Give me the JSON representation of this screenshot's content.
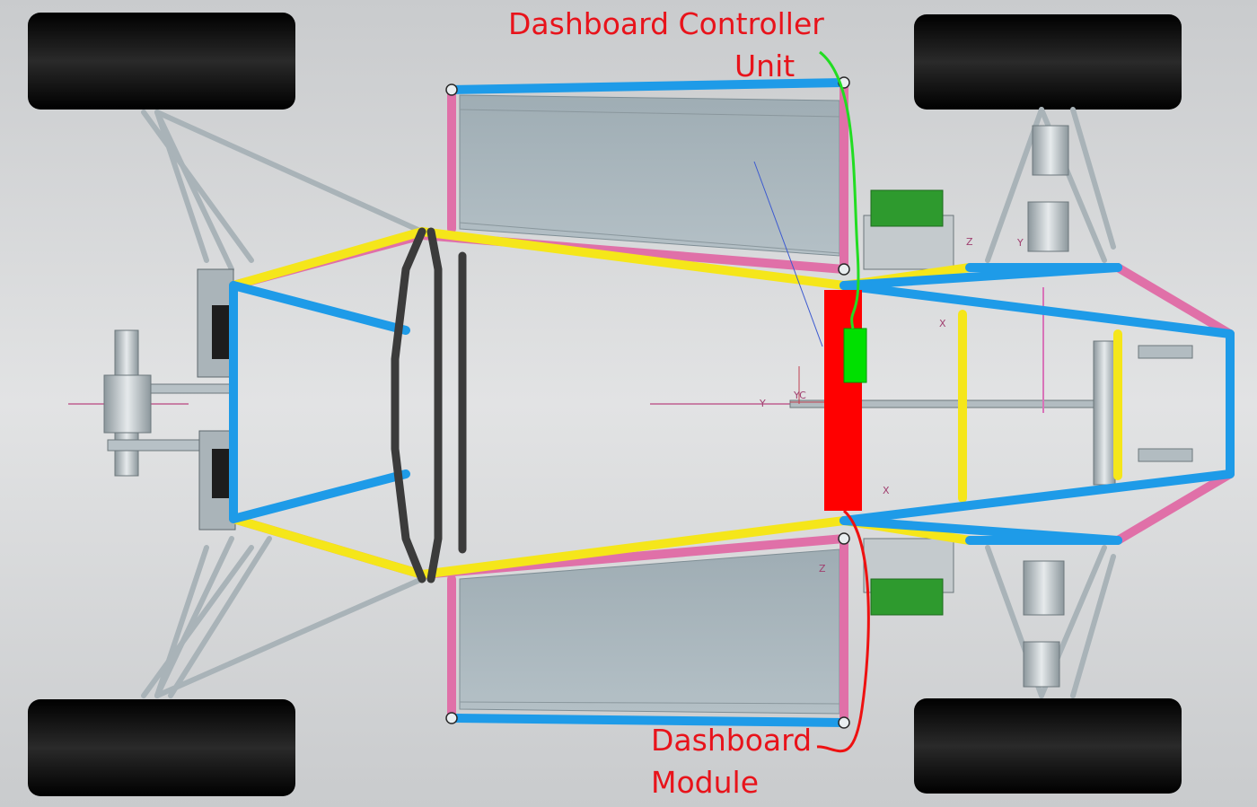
{
  "labels": {
    "dashboard_controller_unit_line1": "Dashboard Controller",
    "dashboard_controller_unit_line2": "Unit",
    "dashboard_module_line1": "Dashboard",
    "dashboard_module_line2": "Module"
  },
  "axis_markers": {
    "yc": "YC",
    "y": "Y",
    "x": "X",
    "z": "Z"
  },
  "colors": {
    "background": "#d4d6d8",
    "main_hoop_tubes": "#1e9be8",
    "side_impact_tubes": "#f5e61a",
    "lower_tubes": "#e070a8",
    "dashboard_module": "#ff0000",
    "dashboard_controller_unit": "#00e000",
    "controller_leader_line": "#22dd22",
    "module_leader_line": "#ee1111",
    "tyre": "#0d0d0d",
    "callout_text": "#e8131b",
    "side_pod_panel": "#a7b4bb"
  }
}
